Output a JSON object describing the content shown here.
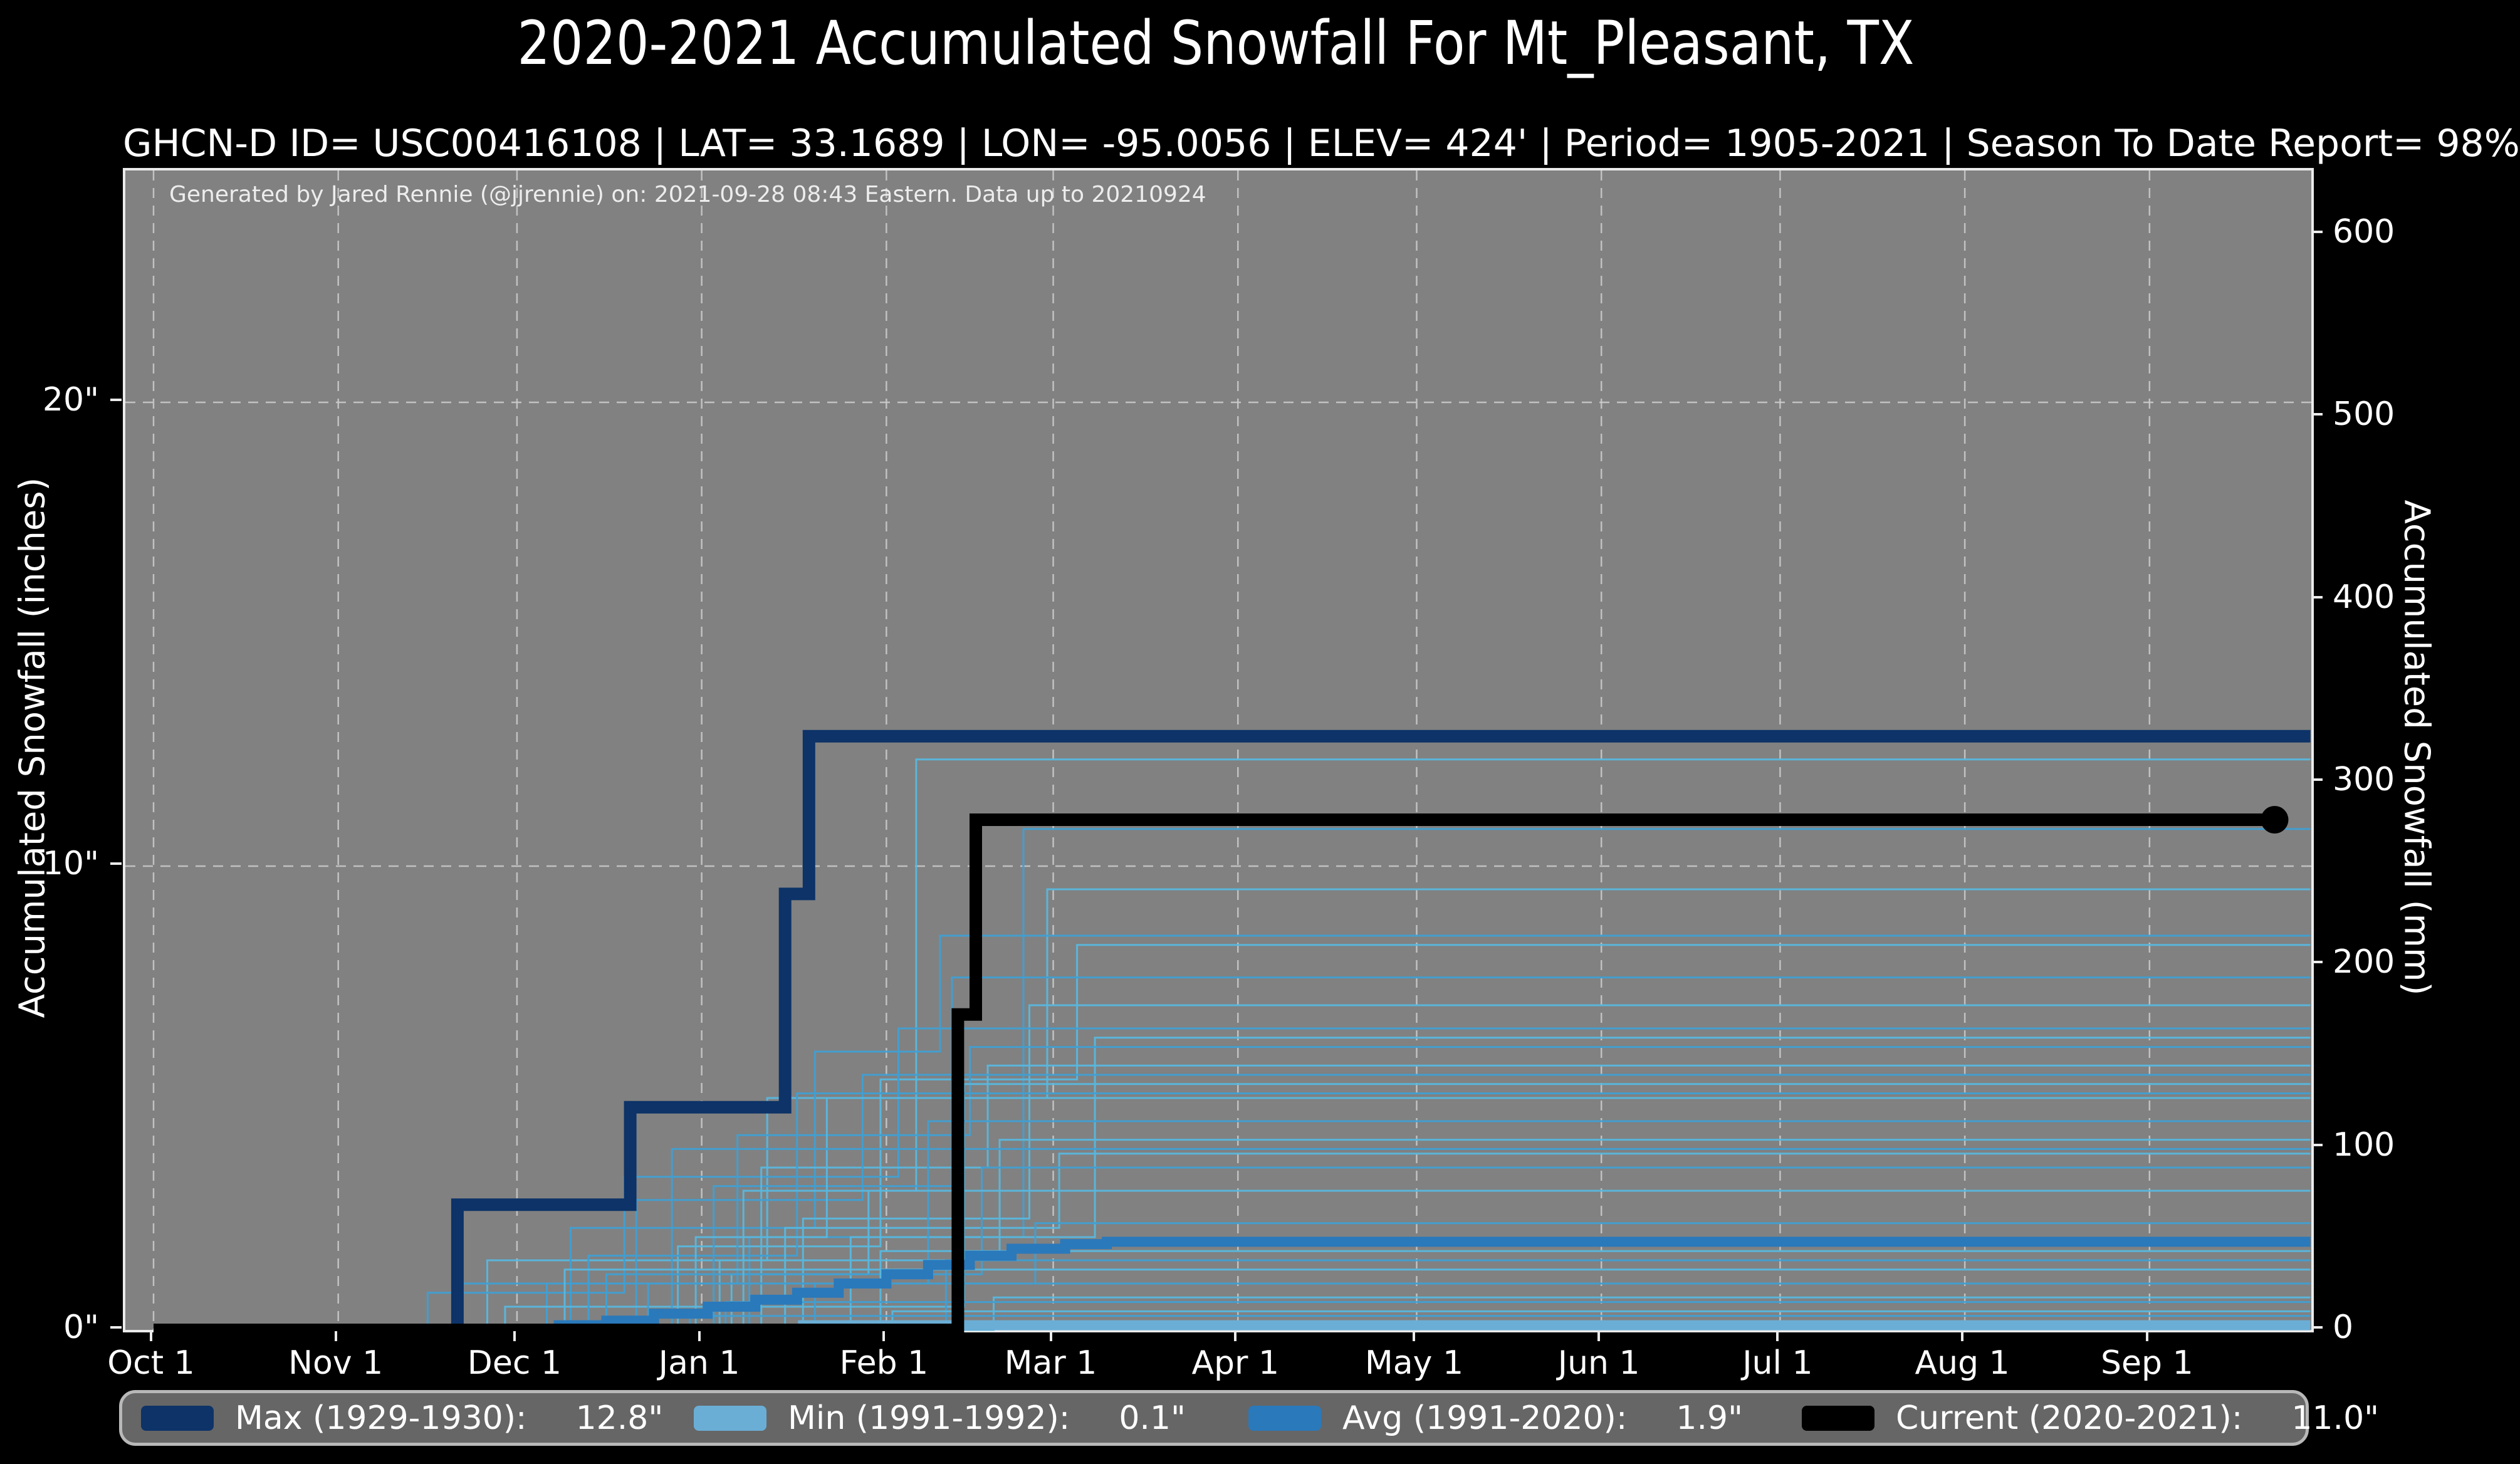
{
  "chart_data": {
    "type": "line",
    "title": "2020-2021 Accumulated Snowfall For Mt_Pleasant, TX",
    "subtitle": "GHCN-D ID= USC00416108 | LAT= 33.1689 | LON= -95.0056 | ELEV= 424' | Period= 1905-2021 | Season To Date Report= 98%",
    "annotation": "Generated by Jared Rennie (@jjrennie) on: 2021-09-28 08:43 Eastern. Data up to 20210924",
    "colors": {
      "figure_bg": "#000000",
      "plot_bg": "#818181",
      "grid": "#cdcdcd",
      "text": "#ffffff",
      "plot_border": "#ebebeb",
      "legend_bg": "#666666",
      "legend_border": "#b8b8b8"
    },
    "axes": {
      "left": {
        "title": "Accumulated Snowfall (inches)",
        "lim_inches": [
          0,
          25
        ],
        "ticks": [
          {
            "label": "0\"",
            "inches": 0
          },
          {
            "label": "10\"",
            "inches": 10
          },
          {
            "label": "20\"",
            "inches": 20
          }
        ]
      },
      "right": {
        "title": "Accumulated Snowfall (mm)",
        "ticks": [
          {
            "label": "0",
            "mm": 0
          },
          {
            "label": "100",
            "mm": 100
          },
          {
            "label": "200",
            "mm": 200
          },
          {
            "label": "300",
            "mm": 300
          },
          {
            "label": "400",
            "mm": 400
          },
          {
            "label": "500",
            "mm": 500
          },
          {
            "label": "600",
            "mm": 600
          }
        ]
      },
      "x": {
        "season_span": "Oct 1 - Sep 30",
        "ticks": [
          "Oct 1",
          "Nov 1",
          "Dec 1",
          "Jan 1",
          "Feb 1",
          "Mar 1",
          "Apr 1",
          "May 1",
          "Jun 1",
          "Jul 1",
          "Aug 1",
          "Sep 1"
        ]
      },
      "grid": {
        "dashed": true,
        "horizontal_at_inches": [
          10,
          20
        ],
        "vertical_at_month_starts": true
      }
    },
    "series": [
      {
        "name": "Max (1929-1930)",
        "total": "12.8\"",
        "color": "#0d3368",
        "width": 20,
        "end": "Sep 30",
        "steps": [
          [
            "Oct 1",
            0
          ],
          [
            "Nov 21",
            2.7
          ],
          [
            "Dec 20",
            4.8
          ],
          [
            "Jan 15",
            9.4
          ],
          [
            "Jan 19",
            12.8
          ]
        ]
      },
      {
        "name": "Min (1991-1992)",
        "total": "0.1\"",
        "color": "#6aaed6",
        "width": 16,
        "end": "Sep 30",
        "steps": [
          [
            "Oct 1",
            0
          ],
          [
            "Jan 18",
            0.1
          ]
        ]
      },
      {
        "name": "Avg (1991-2020)",
        "total": "1.9\"",
        "color": "#2a79bb",
        "width": 16,
        "end": "Sep 30",
        "steps": [
          [
            "Oct 1",
            0
          ],
          [
            "Dec 8",
            0.1
          ],
          [
            "Dec 16",
            0.2
          ],
          [
            "Dec 24",
            0.35
          ],
          [
            "Jan 2",
            0.5
          ],
          [
            "Jan 10",
            0.65
          ],
          [
            "Jan 17",
            0.8
          ],
          [
            "Jan 24",
            1.0
          ],
          [
            "Feb 1",
            1.2
          ],
          [
            "Feb 8",
            1.4
          ],
          [
            "Feb 15",
            1.6
          ],
          [
            "Feb 22",
            1.75
          ],
          [
            "Mar 3",
            1.85
          ],
          [
            "Mar 10",
            1.9
          ]
        ]
      },
      {
        "name": "Current (2020-2021)",
        "total": "11.0\"",
        "color": "#000000",
        "width": 20,
        "end": "Sep 22",
        "end_marker": true,
        "marker_radius": 22,
        "steps": [
          [
            "Oct 1",
            0
          ],
          [
            "Feb 13",
            6.8
          ],
          [
            "Feb 16",
            11.0
          ]
        ]
      }
    ],
    "historical_seasons": {
      "description": "Thin blue lines: each prior season 1905-2021, accumulated snowfall steps in inches",
      "color_cycle": [
        "#57b7de",
        "#3f9fd3"
      ],
      "width": 3,
      "lines": [
        [
          [
            "Oct 1",
            0
          ],
          [
            "Jan 6",
            1.2
          ],
          [
            "Jan 29",
            3.0
          ],
          [
            "Feb 6",
            12.3
          ]
        ],
        [
          [
            "Oct 1",
            0
          ],
          [
            "Jan 9",
            2.0
          ],
          [
            "Feb 24",
            10.8
          ]
        ],
        [
          [
            "Oct 1",
            0
          ],
          [
            "Nov 26",
            1.5
          ],
          [
            "Jan 12",
            5.0
          ],
          [
            "Feb 28",
            9.5
          ]
        ],
        [
          [
            "Oct 1",
            0
          ],
          [
            "Dec 10",
            2.2
          ],
          [
            "Jan 20",
            6.0
          ],
          [
            "Feb 10",
            8.5
          ]
        ],
        [
          [
            "Oct 1",
            0
          ],
          [
            "Dec 28",
            1.8
          ],
          [
            "Jan 31",
            5.4
          ],
          [
            "Mar 5",
            8.3
          ]
        ],
        [
          [
            "Oct 1",
            0
          ],
          [
            "Jan 3",
            3.1
          ],
          [
            "Feb 12",
            7.6
          ]
        ],
        [
          [
            "Oct 1",
            0
          ],
          [
            "Jan 18",
            2.4
          ],
          [
            "Feb 25",
            7.0
          ]
        ],
        [
          [
            "Oct 1",
            0
          ],
          [
            "Nov 16",
            0.8
          ],
          [
            "Dec 19",
            3.3
          ],
          [
            "Feb 3",
            6.5
          ]
        ],
        [
          [
            "Oct 1",
            0
          ],
          [
            "Jan 26",
            2.0
          ],
          [
            "Mar 8",
            6.3
          ]
        ],
        [
          [
            "Oct 1",
            0
          ],
          [
            "Dec 6",
            1.0
          ],
          [
            "Jan 7",
            4.2
          ],
          [
            "Feb 15",
            6.1
          ]
        ],
        [
          [
            "Oct 1",
            0
          ],
          [
            "Jan 11",
            3.5
          ],
          [
            "Feb 18",
            5.7
          ]
        ],
        [
          [
            "Oct 1",
            0
          ],
          [
            "Dec 21",
            2.8
          ],
          [
            "Jan 28",
            5.5
          ]
        ],
        [
          [
            "Oct 1",
            0
          ],
          [
            "Nov 29",
            0.5
          ],
          [
            "Feb 14",
            5.3
          ]
        ],
        [
          [
            "Oct 1",
            0
          ],
          [
            "Dec 13",
            1.6
          ],
          [
            "Jan 17",
            5.1
          ]
        ],
        [
          [
            "Oct 1",
            0
          ],
          [
            "Dec 31",
            2.0
          ],
          [
            "Jan 22",
            5.0
          ]
        ],
        [
          [
            "Oct 1",
            0
          ],
          [
            "Nov 21",
            1.0
          ],
          [
            "Feb 8",
            4.5
          ]
        ],
        [
          [
            "Oct 1",
            0
          ],
          [
            "Jan 4",
            1.5
          ],
          [
            "Feb 20",
            4.1
          ]
        ],
        [
          [
            "Oct 1",
            0
          ],
          [
            "Dec 27",
            3.9
          ]
        ],
        [
          [
            "Oct 1",
            0
          ],
          [
            "Jan 15",
            2.2
          ],
          [
            "Mar 2",
            3.8
          ]
        ],
        [
          [
            "Oct 1",
            0
          ],
          [
            "Dec 16",
            1.2
          ],
          [
            "Feb 17",
            3.5
          ]
        ],
        [
          [
            "Oct 1",
            0
          ],
          [
            "Jan 8",
            3.0
          ]
        ],
        [
          [
            "Oct 1",
            0
          ],
          [
            "Dec 23",
            1.0
          ],
          [
            "Feb 26",
            2.3
          ]
        ],
        [
          [
            "Oct 1",
            0
          ],
          [
            "Jan 31",
            1.7
          ]
        ],
        [
          [
            "Oct 1",
            0
          ],
          [
            "Feb 11",
            1.5
          ]
        ],
        [
          [
            "Oct 1",
            0
          ],
          [
            "Dec 9",
            1.3
          ]
        ],
        [
          [
            "Oct 1",
            0
          ],
          [
            "Jan 20",
            1.0
          ]
        ],
        [
          [
            "Oct 1",
            0
          ],
          [
            "Feb 19",
            0.7
          ]
        ],
        [
          [
            "Oct 1",
            0
          ],
          [
            "Jan 5",
            0.6
          ]
        ],
        [
          [
            "Oct 1",
            0
          ],
          [
            "Feb 2",
            0.4
          ]
        ],
        [
          [
            "Oct 1",
            0
          ],
          [
            "Dec 30",
            0.3
          ]
        ]
      ]
    },
    "legend": {
      "items": [
        {
          "label": "Max (1929-1930):",
          "value": "12.8\"",
          "color": "#0d3368"
        },
        {
          "label": "Min (1991-1992):",
          "value": "0.1\"",
          "color": "#6aaed6"
        },
        {
          "label": "Avg (1991-2020):",
          "value": "1.9\"",
          "color": "#2a79bb"
        },
        {
          "label": "Current (2020-2021):",
          "value": "11.0\"",
          "color": "#000000"
        }
      ]
    }
  }
}
